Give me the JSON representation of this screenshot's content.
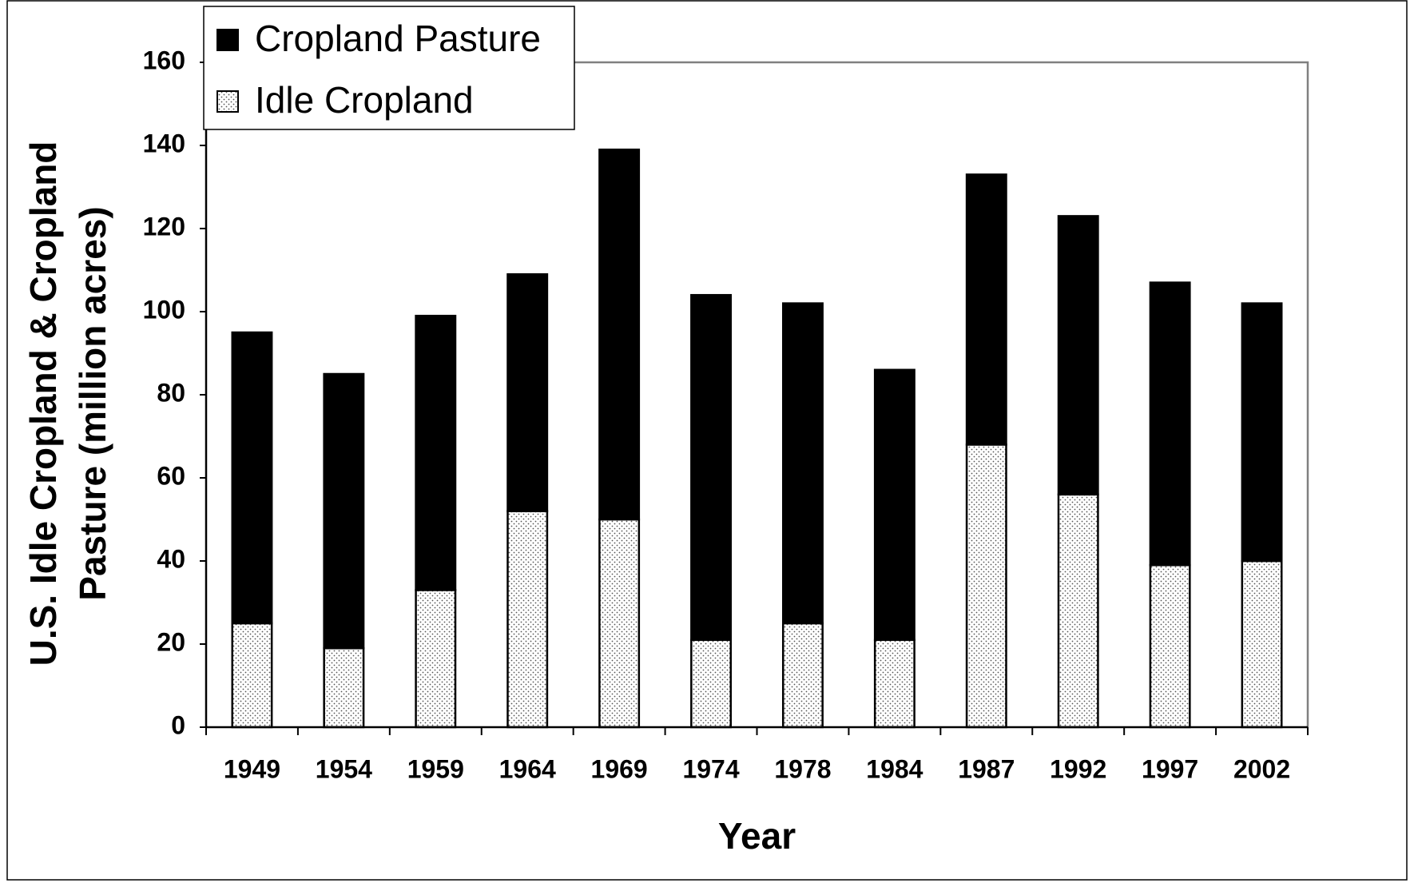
{
  "chart_data": {
    "type": "stacked_bar",
    "xlabel": "Year",
    "ylabel": [
      "U.S. Idle Cropland & Cropland",
      "Pasture (million acres)"
    ],
    "categories": [
      "1949",
      "1954",
      "1959",
      "1964",
      "1969",
      "1974",
      "1978",
      "1984",
      "1987",
      "1992",
      "1997",
      "2002"
    ],
    "series": [
      {
        "name": "Cropland Pasture",
        "color": "#000000",
        "values": [
          70,
          66,
          66,
          57,
          89,
          83,
          77,
          65,
          65,
          67,
          68,
          62
        ]
      },
      {
        "name": "Idle Cropland",
        "color": "dotted",
        "values": [
          25,
          19,
          33,
          52,
          50,
          21,
          25,
          21,
          68,
          56,
          39,
          40
        ]
      }
    ],
    "ylim": [
      0,
      160
    ],
    "yticks": [
      0,
      20,
      40,
      60,
      80,
      100,
      120,
      140,
      160
    ],
    "legend": "top-left"
  }
}
